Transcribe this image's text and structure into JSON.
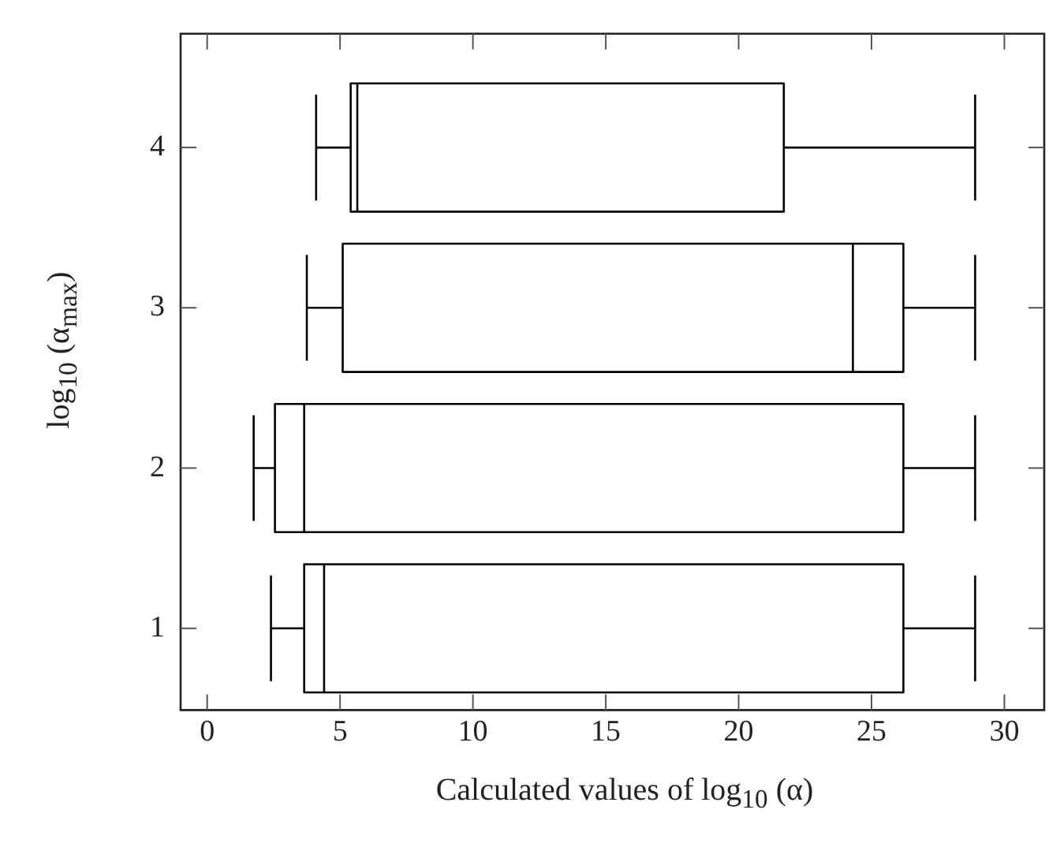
{
  "chart_data": {
    "type": "box",
    "orientation": "horizontal",
    "xlabel": "Calculated values of log$_{10}$ (α)",
    "ylabel": "log$_{10}$ (α$_{max}$)",
    "categories": [
      "4",
      "3",
      "2",
      "1"
    ],
    "boxes": [
      {
        "low": 4.1,
        "q1": 5.4,
        "median": 5.65,
        "q3": 21.7,
        "high": 28.9
      },
      {
        "low": 3.75,
        "q1": 5.1,
        "median": 24.3,
        "q3": 26.2,
        "high": 28.9
      },
      {
        "low": 1.75,
        "q1": 2.55,
        "median": 3.65,
        "q3": 26.2,
        "high": 28.9
      },
      {
        "low": 2.4,
        "q1": 3.65,
        "median": 4.4,
        "q3": 26.2,
        "high": 28.9
      }
    ],
    "color": "#000000",
    "xlim": [
      -1,
      31.5
    ],
    "xticks": [
      0,
      5,
      10,
      15,
      20,
      25,
      30
    ],
    "grid": false,
    "legend": false
  }
}
